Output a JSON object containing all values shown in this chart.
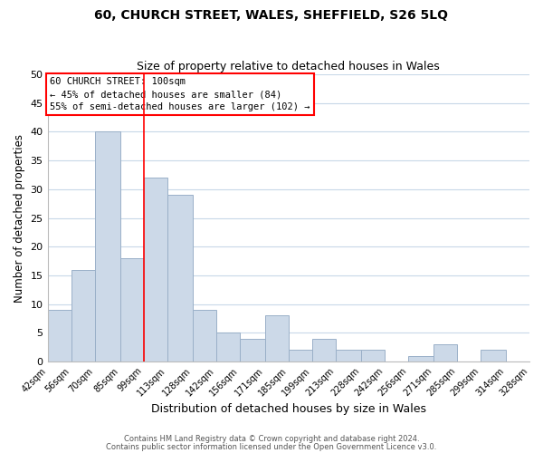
{
  "title": "60, CHURCH STREET, WALES, SHEFFIELD, S26 5LQ",
  "subtitle": "Size of property relative to detached houses in Wales",
  "xlabel": "Distribution of detached houses by size in Wales",
  "ylabel": "Number of detached properties",
  "bar_color": "#ccd9e8",
  "bar_edgecolor": "#9ab0c8",
  "vline_color": "red",
  "vline_x": 99,
  "annotation_title": "60 CHURCH STREET: 100sqm",
  "annotation_line1": "← 45% of detached houses are smaller (84)",
  "annotation_line2": "55% of semi-detached houses are larger (102) →",
  "annotation_box_edgecolor": "red",
  "bins": [
    42,
    56,
    70,
    85,
    99,
    113,
    128,
    142,
    156,
    171,
    185,
    199,
    213,
    228,
    242,
    256,
    271,
    285,
    299,
    314,
    328
  ],
  "counts": [
    9,
    16,
    40,
    18,
    32,
    29,
    9,
    5,
    4,
    8,
    2,
    4,
    2,
    2,
    0,
    1,
    3,
    0,
    2,
    0
  ],
  "ylim": [
    0,
    50
  ],
  "yticks": [
    0,
    5,
    10,
    15,
    20,
    25,
    30,
    35,
    40,
    45,
    50
  ],
  "footer1": "Contains HM Land Registry data © Crown copyright and database right 2024.",
  "footer2": "Contains public sector information licensed under the Open Government Licence v3.0.",
  "background_color": "#ffffff",
  "grid_color": "#c8d8e8"
}
